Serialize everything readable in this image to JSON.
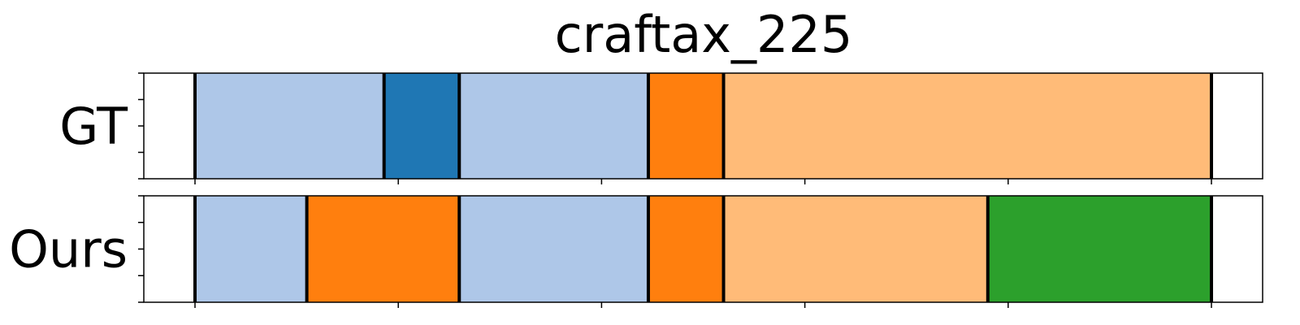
{
  "chart_data": {
    "type": "segmentation_timeline",
    "title": "craftax_225",
    "x_range": [
      0,
      530
    ],
    "x_ticks": [
      0,
      100,
      200,
      300,
      400,
      500
    ],
    "colors": {
      "light_blue": "#aec7e8",
      "blue": "#1f77b4",
      "orange": "#ff7f0e",
      "light_orange": "#ffbb78",
      "green": "#2ca02c"
    },
    "rows": [
      {
        "label": "GT",
        "segments": [
          {
            "start": 0,
            "end": 93,
            "color": "light_blue"
          },
          {
            "start": 93,
            "end": 130,
            "color": "blue"
          },
          {
            "start": 130,
            "end": 223,
            "color": "light_blue"
          },
          {
            "start": 223,
            "end": 260,
            "color": "orange"
          },
          {
            "start": 260,
            "end": 500,
            "color": "light_orange"
          }
        ]
      },
      {
        "label": "Ours",
        "segments": [
          {
            "start": 0,
            "end": 55,
            "color": "light_blue"
          },
          {
            "start": 55,
            "end": 130,
            "color": "orange"
          },
          {
            "start": 130,
            "end": 223,
            "color": "light_blue"
          },
          {
            "start": 223,
            "end": 260,
            "color": "orange"
          },
          {
            "start": 260,
            "end": 390,
            "color": "light_orange"
          },
          {
            "start": 390,
            "end": 500,
            "color": "green"
          }
        ]
      }
    ]
  }
}
